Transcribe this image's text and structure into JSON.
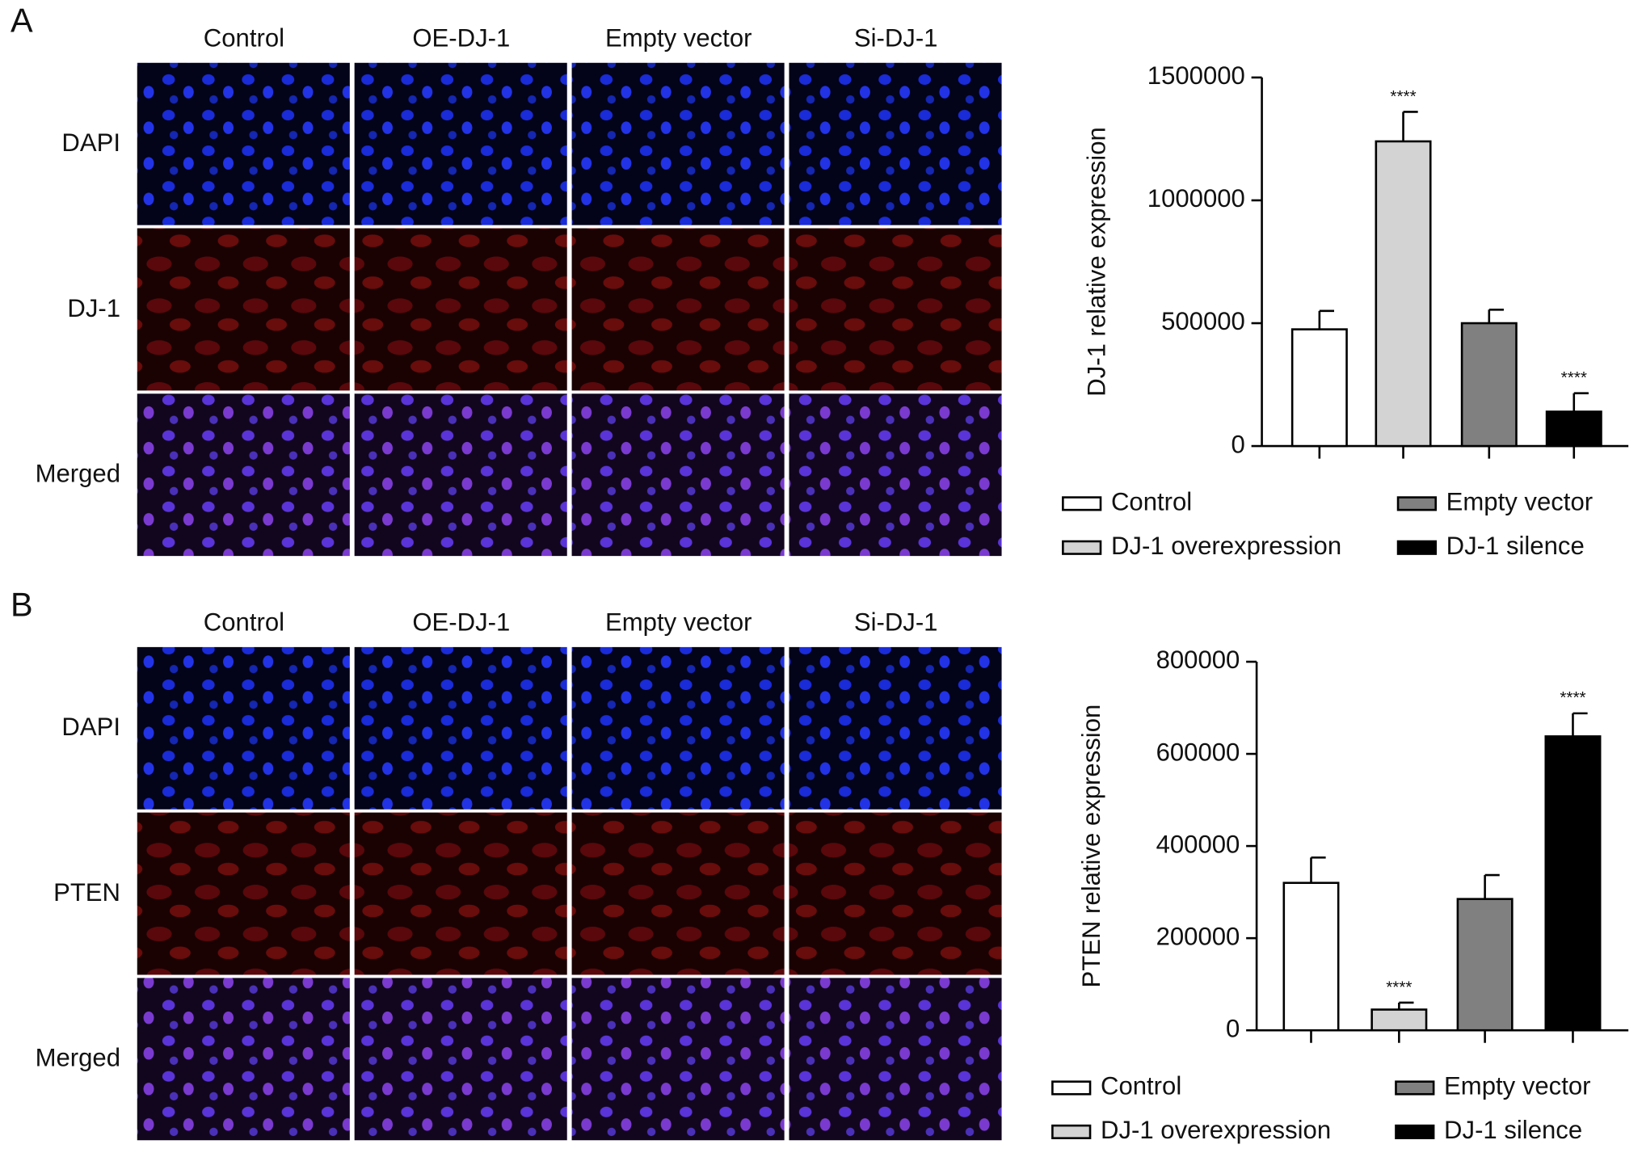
{
  "panels": [
    {
      "label": "A",
      "columns": [
        "Control",
        "OE-DJ-1",
        "Empty vector",
        "Si-DJ-1"
      ],
      "rows": [
        "DAPI",
        "DJ-1",
        "Merged"
      ]
    },
    {
      "label": "B",
      "columns": [
        "Control",
        "OE-DJ-1",
        "Empty vector",
        "Si-DJ-1"
      ],
      "rows": [
        "DAPI",
        "PTEN",
        "Merged"
      ]
    }
  ],
  "chart_data": [
    {
      "type": "bar",
      "y_label": "DJ-1 relative expression",
      "categories": [
        "Control",
        "DJ-1 overexpression",
        "Empty vector",
        "DJ-1 silence"
      ],
      "colors": [
        "#ffffff",
        "#d3d3d3",
        "#808080",
        "#000000"
      ],
      "values": [
        475000,
        1240000,
        500000,
        140000
      ],
      "errors": [
        75000,
        120000,
        55000,
        75000
      ],
      "annotations": [
        null,
        "****",
        null,
        "****"
      ],
      "ylim": [
        0,
        1500000
      ],
      "yticks": [
        0,
        500000,
        1000000,
        1500000
      ]
    },
    {
      "type": "bar",
      "y_label": "PTEN relative expression",
      "categories": [
        "Control",
        "DJ-1 overexpression",
        "Empty vector",
        "DJ-1 silence"
      ],
      "colors": [
        "#ffffff",
        "#d3d3d3",
        "#808080",
        "#000000"
      ],
      "values": [
        320000,
        45000,
        285000,
        638000
      ],
      "errors": [
        55000,
        15000,
        52000,
        50000
      ],
      "annotations": [
        null,
        "****",
        null,
        "****"
      ],
      "ylim": [
        0,
        800000
      ],
      "yticks": [
        0,
        200000,
        400000,
        600000,
        800000
      ]
    }
  ]
}
